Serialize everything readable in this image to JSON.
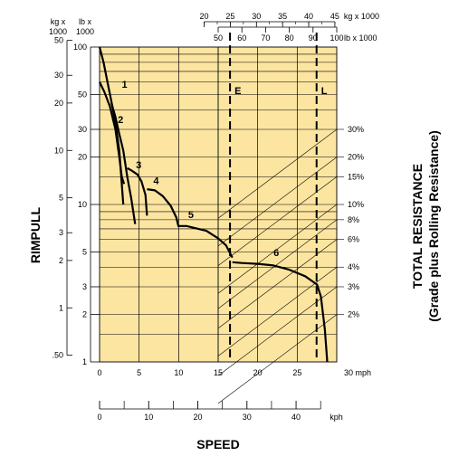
{
  "chart_data": {
    "type": "line",
    "title": "",
    "xlabel": "SPEED",
    "ylabel": "RIMPULL",
    "right_label_line1": "TOTAL RESISTANCE",
    "right_label_line2": "(Grade plus Rolling Resistance)",
    "x_scale_mph": {
      "range": [
        0,
        30
      ],
      "ticks": [
        "0",
        "5",
        "10",
        "15",
        "20",
        "25",
        "30 mph"
      ]
    },
    "x_scale_kph": {
      "range": [
        0,
        48
      ],
      "ticks": [
        "0",
        "10",
        "20",
        "30",
        "40",
        "kph"
      ]
    },
    "y_scale_kg": {
      "unit_line1": "kg x",
      "unit_line2": "1000",
      "ticks": [
        {
          "value": 50,
          "label": "50"
        },
        {
          "value": 30,
          "label": "30"
        },
        {
          "value": 20,
          "label": "20"
        },
        {
          "value": 10,
          "label": "10"
        },
        {
          "value": 5,
          "label": "5"
        },
        {
          "value": 3,
          "label": "3"
        },
        {
          "value": 2,
          "label": "2"
        },
        {
          "value": 1,
          "label": "1"
        },
        {
          "value": 0.5,
          "label": ".50"
        }
      ]
    },
    "y_scale_lb": {
      "unit_line1": "lb x",
      "unit_line2": "1000",
      "range": [
        1,
        100
      ],
      "ticks": [
        {
          "value": 100,
          "label": "100"
        },
        {
          "value": 50,
          "label": "50"
        },
        {
          "value": 30,
          "label": "30"
        },
        {
          "value": 20,
          "label": "20"
        },
        {
          "value": 10,
          "label": "10"
        },
        {
          "value": 5,
          "label": "5"
        },
        {
          "value": 3,
          "label": "3"
        },
        {
          "value": 2,
          "label": "2"
        },
        {
          "value": 1,
          "label": "1"
        }
      ]
    },
    "weight_scale_kg": {
      "unit": "kg x 1000",
      "ticks": [
        "20",
        "25",
        "30",
        "35",
        "40",
        "45"
      ]
    },
    "weight_scale_lb": {
      "unit": "lb x 1000",
      "ticks": [
        "50",
        "60",
        "70",
        "80",
        "90",
        "100"
      ]
    },
    "weight_markers": [
      {
        "label": "E",
        "lb_x1000": 55
      },
      {
        "label": "L",
        "lb_x1000": 91.5
      }
    ],
    "resistance_lines": [
      "30%",
      "20%",
      "15%",
      "10%",
      "8%",
      "6%",
      "4%",
      "3%",
      "2%"
    ],
    "series": [
      {
        "label": "1",
        "points": [
          [
            0,
            100
          ],
          [
            0.5,
            80
          ],
          [
            1,
            60
          ],
          [
            1.5,
            45
          ],
          [
            2,
            33
          ],
          [
            2.5,
            22
          ],
          [
            3,
            10
          ]
        ]
      },
      {
        "label": "1",
        "points": [
          [
            0,
            60
          ],
          [
            0.6,
            52
          ],
          [
            1.3,
            42
          ],
          [
            2,
            30
          ],
          [
            2.5,
            20
          ],
          [
            2.8,
            15
          ],
          [
            3.1,
            13.5
          ]
        ]
      },
      {
        "label": "2",
        "points": [
          [
            1.5,
            44
          ],
          [
            2,
            36
          ],
          [
            2.5,
            28
          ],
          [
            3,
            22
          ],
          [
            3.5,
            15
          ],
          [
            4,
            11
          ],
          [
            4.5,
            7.5
          ]
        ]
      },
      {
        "label": "3",
        "points": [
          [
            3.5,
            17
          ],
          [
            4,
            16.5
          ],
          [
            4.8,
            15.5
          ],
          [
            5.3,
            14
          ],
          [
            5.8,
            11.5
          ],
          [
            6,
            8.5
          ]
        ]
      },
      {
        "label": "4",
        "points": [
          [
            6,
            12.5
          ],
          [
            7,
            12.3
          ],
          [
            8,
            11.3
          ],
          [
            9,
            9.8
          ],
          [
            9.7,
            8.3
          ],
          [
            10,
            7.2
          ]
        ]
      },
      {
        "label": "5",
        "points": [
          [
            10,
            7.3
          ],
          [
            11,
            7.3
          ],
          [
            12,
            7.1
          ],
          [
            13.5,
            6.8
          ],
          [
            15,
            6.1
          ],
          [
            16,
            5.5
          ],
          [
            16.8,
            4.6
          ]
        ]
      },
      {
        "label": "6",
        "points": [
          [
            16.8,
            4.3
          ],
          [
            18,
            4.25
          ],
          [
            20,
            4.2
          ],
          [
            22,
            4.1
          ],
          [
            24,
            3.85
          ],
          [
            26,
            3.5
          ],
          [
            27.5,
            3.1
          ],
          [
            28,
            2.6
          ],
          [
            28.5,
            1.6
          ],
          [
            28.8,
            1
          ]
        ]
      }
    ]
  }
}
